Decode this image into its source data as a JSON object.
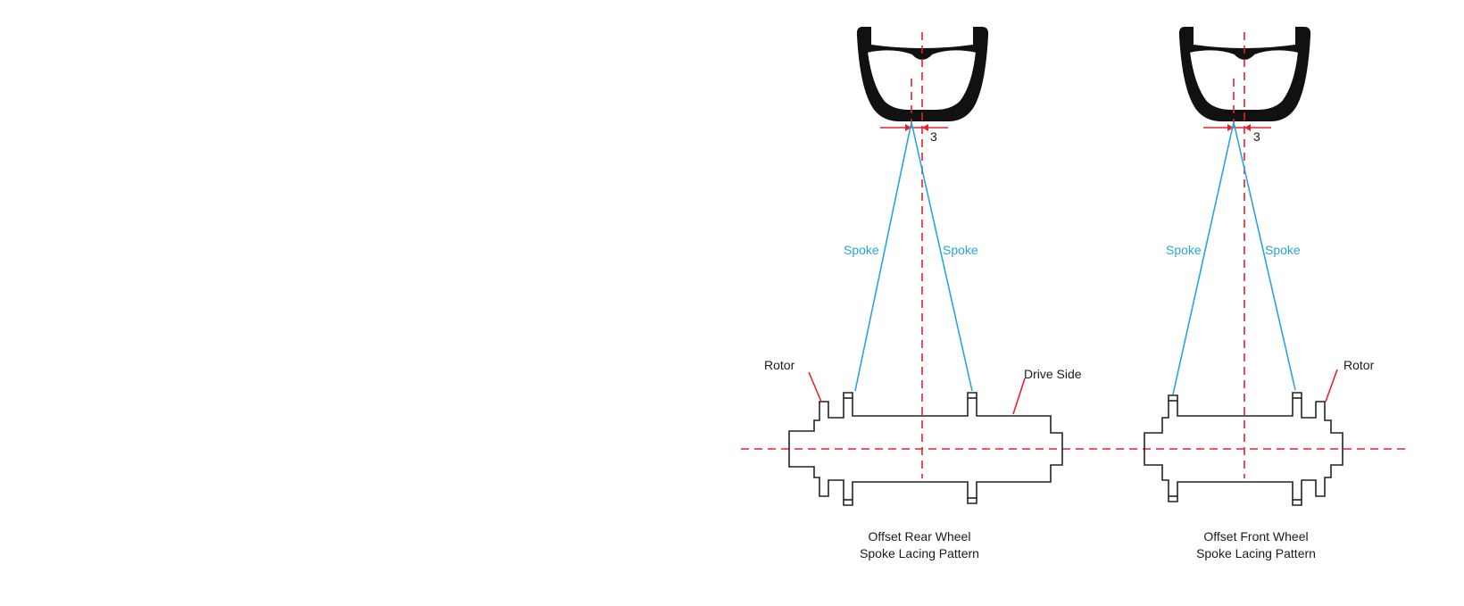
{
  "rear": {
    "offset_value": "3",
    "spoke_left": "Spoke",
    "spoke_right": "Spoke",
    "rotor_label": "Rotor",
    "drive_side_label": "Drive Side",
    "caption_line1": "Offset Rear Wheel",
    "caption_line2": "Spoke Lacing Pattern"
  },
  "front": {
    "offset_value": "3",
    "spoke_left": "Spoke",
    "spoke_right": "Spoke",
    "rotor_label": "Rotor",
    "caption_line1": "Offset Front Wheel",
    "caption_line2": "Spoke Lacing Pattern"
  },
  "colors": {
    "centerline": "#e8202a",
    "spoke": "#29a3e0",
    "outline": "#222222"
  }
}
